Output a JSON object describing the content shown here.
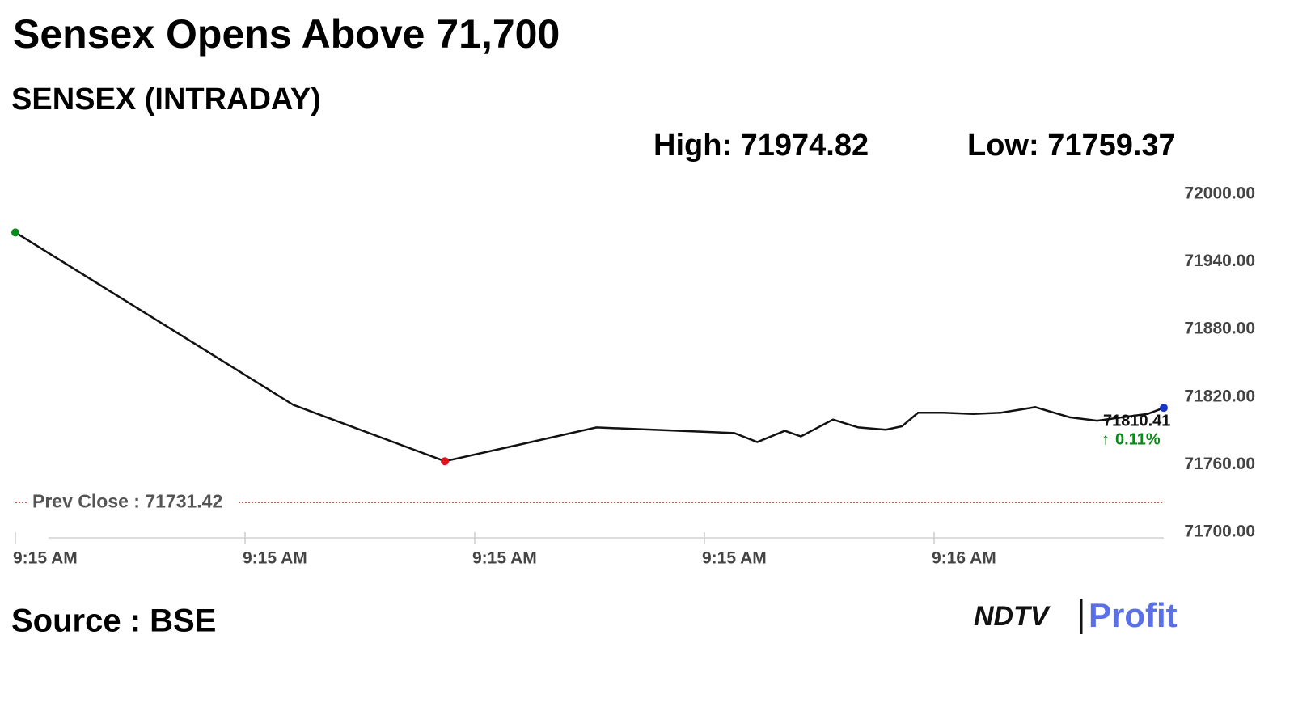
{
  "chart_data": {
    "type": "line",
    "title": "Sensex Opens Above 71,700",
    "subtitle": "SENSEX (INTRADAY)",
    "high_label": "High: 71974.82",
    "low_label": "Low: 71759.37",
    "source": "Source : BSE",
    "logo": {
      "left": "NDTV",
      "right": "Profit"
    },
    "x": [
      0,
      1.21,
      1.87,
      2.53,
      3.13,
      3.23,
      3.35,
      3.42,
      3.56,
      3.67,
      3.79,
      3.86,
      3.93,
      4.04,
      4.17,
      4.29,
      4.44,
      4.59,
      4.71,
      4.93,
      5
    ],
    "series": [
      {
        "name": "SENSEX",
        "color": "#111111",
        "values": [
          71966,
          71813,
          71763,
          71793,
          71788,
          71780,
          71790,
          71785,
          71800,
          71793,
          71791,
          71794,
          71806,
          71806,
          71805,
          71806,
          71811,
          71802,
          71799,
          71805,
          71810.41
        ]
      }
    ],
    "markers": {
      "start": "#0a8a1a",
      "min": "#e0141e",
      "end": "#1736c8"
    },
    "change_label": "0.11%",
    "change_color": "#0a8a1a",
    "reference_line": {
      "label": "Prev Close : 71731.42",
      "value": 71731.42,
      "color": "#d9534f"
    },
    "xlim": [
      0,
      5
    ],
    "xticks": [
      {
        "value": 0,
        "label": "9:15 AM"
      },
      {
        "value": 1,
        "label": "9:15 AM"
      },
      {
        "value": 2,
        "label": "9:15 AM"
      },
      {
        "value": 3,
        "label": "9:15 AM"
      },
      {
        "value": 4,
        "label": "9:16 AM"
      }
    ],
    "ylim": [
      71700,
      72000
    ],
    "yticks": [
      {
        "value": 71700,
        "label": "71700.00"
      },
      {
        "value": 71760,
        "label": "71760.00"
      },
      {
        "value": 71820,
        "label": "71820.00"
      },
      {
        "value": 71880,
        "label": "71880.00"
      },
      {
        "value": 71940,
        "label": "71940.00"
      },
      {
        "value": 72000,
        "label": "72000.00"
      }
    ],
    "grid": false
  }
}
